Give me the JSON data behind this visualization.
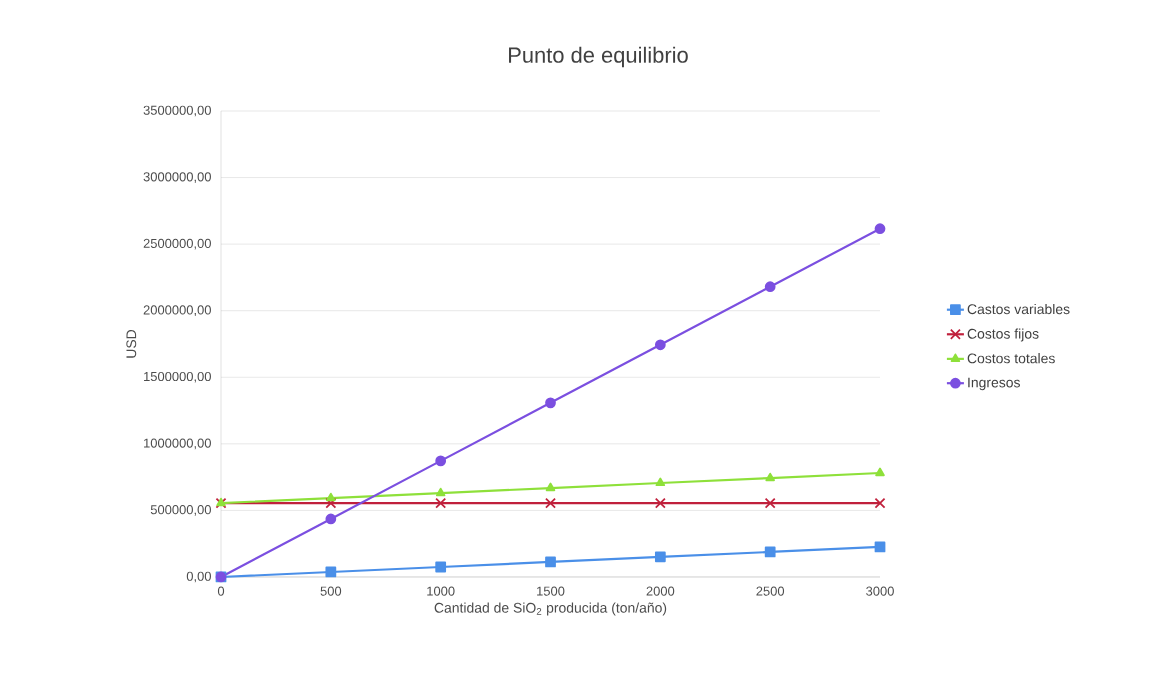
{
  "chart_data": {
    "type": "line",
    "title": "Punto de equilibrio",
    "xlabel": "Cantidad de SiO$_{2}$ producida (ton/año)",
    "ylabel": "USD",
    "x": [
      0,
      500,
      1000,
      1500,
      2000,
      2500,
      3000
    ],
    "series": [
      {
        "name": "Castos variables",
        "color": "#4a8fe8",
        "marker": "square",
        "values": [
          0,
          37500,
          75000,
          113000,
          151000,
          188000,
          226000
        ]
      },
      {
        "name": "Costos fijos",
        "color": "#c0203c",
        "marker": "cross",
        "values": [
          555000,
          555000,
          555000,
          555000,
          555000,
          555000,
          555000
        ]
      },
      {
        "name": "Costos totales",
        "color": "#8ee03a",
        "marker": "triangle",
        "values": [
          555000,
          592500,
          630000,
          668000,
          706000,
          743000,
          781000
        ]
      },
      {
        "name": "Ingresos",
        "color": "#7b4fe0",
        "marker": "circle",
        "values": [
          0,
          436000,
          872000,
          1308000,
          1744000,
          2180000,
          2616000
        ]
      }
    ],
    "xlim": [
      0,
      3000
    ],
    "xticks": [
      0,
      500,
      1000,
      1500,
      2000,
      2500,
      3000
    ],
    "ylim": [
      0,
      3500000
    ],
    "yticks": [
      {
        "value": 0,
        "label": "0,00"
      },
      {
        "value": 500000,
        "label": "500000,00"
      },
      {
        "value": 1000000,
        "label": "1000000,00"
      },
      {
        "value": 1500000,
        "label": "1500000,00"
      },
      {
        "value": 2000000,
        "label": "2000000,00"
      },
      {
        "value": 2500000,
        "label": "2500000,00"
      },
      {
        "value": 3000000,
        "label": "3000000,00"
      },
      {
        "value": 3500000,
        "label": "3500000,00"
      }
    ],
    "grid": "y",
    "legend": "right",
    "line_style": "solid"
  }
}
